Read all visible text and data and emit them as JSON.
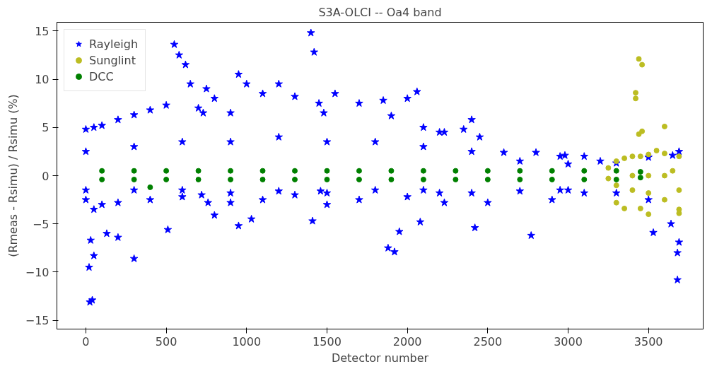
{
  "chart_data": {
    "type": "scatter",
    "title": "S3A-OLCI -- Oa4 band",
    "xlabel": "Detector number",
    "ylabel": "(Rmeas - Rsimu) / Rsimu (%)",
    "xlim": [
      -180,
      3840
    ],
    "ylim": [
      -15.9,
      15.9
    ],
    "xticks": [
      0,
      500,
      1000,
      1500,
      2000,
      2500,
      3000,
      3500
    ],
    "yticks": [
      {
        "value": -15,
        "label": "−15"
      },
      {
        "value": -10,
        "label": "−10"
      },
      {
        "value": -5,
        "label": "−5"
      },
      0,
      5,
      10,
      15
    ],
    "grid": false,
    "legend": "top left",
    "series": [
      {
        "name": "Rayleigh",
        "color": "#0000ff",
        "marker": "star",
        "x": [
          0,
          50,
          100,
          200,
          300,
          400,
          500,
          550,
          580,
          620,
          650,
          700,
          730,
          750,
          800,
          900,
          950,
          1000,
          1100,
          1200,
          1300,
          1400,
          1420,
          1450,
          1480,
          1550,
          1700,
          1850,
          1900,
          2000,
          2060,
          2100,
          2200,
          2230,
          2350,
          2400,
          2450,
          2600,
          2800,
          2950,
          2980,
          3100,
          3200,
          3300,
          3500,
          3650,
          3690,
          0,
          50,
          100,
          200,
          400,
          600,
          720,
          760,
          900,
          1100,
          1300,
          1460,
          1500,
          1700,
          2000,
          2200,
          2230,
          2500,
          2900,
          2950,
          3100,
          3300,
          3500,
          20,
          25,
          40,
          50,
          30,
          130,
          200,
          300,
          510,
          800,
          950,
          1030,
          1410,
          1880,
          1920,
          1950,
          2080,
          2420,
          2770,
          3530,
          3680,
          3680,
          3690,
          3640,
          0,
          300,
          600,
          900,
          1200,
          1500,
          1800,
          2100,
          2400,
          2700,
          3000,
          0,
          300,
          600,
          900,
          1200,
          1500,
          1800,
          2100,
          2400,
          2700,
          3000
        ],
        "values": [
          4.8,
          5,
          5.2,
          5.8,
          6.3,
          6.8,
          7.3,
          13.6,
          12.5,
          11.5,
          9.5,
          7,
          6.5,
          9,
          8,
          6.5,
          10.5,
          9.5,
          8.5,
          9.5,
          8.2,
          14.8,
          12.8,
          7.5,
          6.5,
          8.5,
          7.5,
          7.8,
          6.2,
          8,
          8.7,
          5,
          4.5,
          4.5,
          4.8,
          5.8,
          4,
          2.4,
          2.4,
          2,
          2.1,
          2,
          1.5,
          1.3,
          1.9,
          2.1,
          2.5,
          -2.5,
          -3.5,
          -3,
          -2.8,
          -2.5,
          -2.2,
          -2,
          -2.8,
          -2.8,
          -2.5,
          -2,
          -1.6,
          -3,
          -2.5,
          -2.2,
          -1.8,
          -2.8,
          -2.8,
          -2.5,
          -1.5,
          -1.8,
          -1.8,
          -2.5,
          -9.5,
          -13.1,
          -12.9,
          -8.3,
          -6.7,
          -6,
          -6.4,
          -8.6,
          -5.6,
          -4.1,
          -5.2,
          -4.5,
          -4.7,
          -7.5,
          -7.9,
          -5.8,
          -4.8,
          -5.4,
          -6.2,
          -5.9,
          -8,
          -10.8,
          -6.9,
          -5,
          2.5,
          3,
          3.5,
          3.5,
          4,
          3.5,
          3.5,
          3,
          2.5,
          1.5,
          1.2,
          -1.5,
          -1.5,
          -1.5,
          -1.8,
          -1.6,
          -1.8,
          -1.5,
          -1.5,
          -1.8,
          -1.6,
          -1.5
        ]
      },
      {
        "name": "Sunglint",
        "color": "#bcbd22",
        "marker": "circle",
        "x": [
          3250,
          3300,
          3350,
          3400,
          3450,
          3500,
          3550,
          3600,
          3690,
          3690,
          3600,
          3500,
          3400,
          3300,
          3250,
          3400,
          3500,
          3600,
          3650,
          3440,
          3460,
          3420,
          3420,
          3440,
          3460,
          3600,
          3300,
          3350,
          3450,
          3500,
          3690,
          3690
        ],
        "values": [
          0.8,
          1.5,
          1.8,
          2,
          2,
          2.2,
          2.6,
          2.3,
          2,
          -1.5,
          -2.5,
          -1.8,
          -1.5,
          -1,
          -0.3,
          0,
          0,
          0,
          0.5,
          12.1,
          11.5,
          8.6,
          8,
          4.3,
          4.6,
          5.1,
          -2.8,
          -3.4,
          -3.4,
          -4,
          -3.5,
          -3.9
        ]
      },
      {
        "name": "DCC",
        "color": "#008000",
        "marker": "circle",
        "x": [
          100,
          300,
          500,
          700,
          900,
          1100,
          1300,
          1500,
          1700,
          1900,
          2100,
          2300,
          2500,
          2700,
          2900,
          3100,
          3300,
          3450,
          100,
          300,
          500,
          700,
          900,
          1100,
          1300,
          1500,
          1700,
          1900,
          2100,
          2300,
          2500,
          2700,
          2900,
          3100,
          3300,
          3450,
          400
        ],
        "values": [
          0.5,
          0.5,
          0.5,
          0.5,
          0.5,
          0.5,
          0.5,
          0.5,
          0.5,
          0.5,
          0.5,
          0.5,
          0.5,
          0.5,
          0.5,
          0.5,
          0.5,
          0.4,
          -0.4,
          -0.4,
          -0.4,
          -0.4,
          -0.4,
          -0.4,
          -0.4,
          -0.4,
          -0.4,
          -0.4,
          -0.4,
          -0.4,
          -0.4,
          -0.4,
          -0.4,
          -0.4,
          -0.4,
          -0.2,
          -1.2
        ]
      }
    ]
  }
}
